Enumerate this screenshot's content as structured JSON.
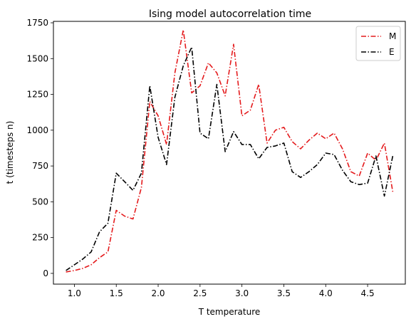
{
  "chart_data": {
    "type": "line",
    "title": "Ising model autocorrelation time",
    "xlabel": "T temperature",
    "ylabel": "t (timesteps n)",
    "xlim": [
      0.75,
      4.95
    ],
    "ylim": [
      -75,
      1760
    ],
    "xticks": [
      1.0,
      1.5,
      2.0,
      2.5,
      3.0,
      3.5,
      4.0,
      4.5
    ],
    "xtick_labels": [
      "1.0",
      "1.5",
      "2.0",
      "2.5",
      "3.0",
      "3.5",
      "4.0",
      "4.5"
    ],
    "yticks": [
      0,
      250,
      500,
      750,
      1000,
      1250,
      1500,
      1750
    ],
    "ytick_labels": [
      "0",
      "250",
      "500",
      "750",
      "1000",
      "1250",
      "1500",
      "1750"
    ],
    "grid": false,
    "legend_position": "top-right",
    "x": [
      0.9,
      1.0,
      1.1,
      1.2,
      1.3,
      1.4,
      1.5,
      1.6,
      1.7,
      1.8,
      1.9,
      2.0,
      2.1,
      2.2,
      2.3,
      2.4,
      2.5,
      2.6,
      2.7,
      2.8,
      2.9,
      3.0,
      3.1,
      3.2,
      3.3,
      3.4,
      3.5,
      3.6,
      3.7,
      3.8,
      3.9,
      4.0,
      4.1,
      4.2,
      4.3,
      4.4,
      4.5,
      4.6,
      4.7,
      4.8
    ],
    "series": [
      {
        "name": "M",
        "color": "#e41a1c",
        "style": "dashdot",
        "values": [
          10,
          20,
          35,
          60,
          110,
          150,
          440,
          400,
          380,
          600,
          1200,
          1100,
          900,
          1400,
          1700,
          1260,
          1310,
          1470,
          1400,
          1240,
          1600,
          1100,
          1140,
          1320,
          910,
          1000,
          1020,
          920,
          870,
          930,
          980,
          940,
          980,
          870,
          710,
          680,
          840,
          790,
          910,
          570
        ]
      },
      {
        "name": "E",
        "color": "#000000",
        "style": "dashdot",
        "values": [
          20,
          60,
          100,
          150,
          290,
          350,
          700,
          640,
          580,
          700,
          1310,
          950,
          760,
          1230,
          1450,
          1580,
          980,
          940,
          1320,
          850,
          990,
          900,
          900,
          800,
          880,
          890,
          910,
          710,
          670,
          710,
          760,
          840,
          830,
          720,
          640,
          620,
          630,
          820,
          540,
          820
        ]
      }
    ]
  }
}
